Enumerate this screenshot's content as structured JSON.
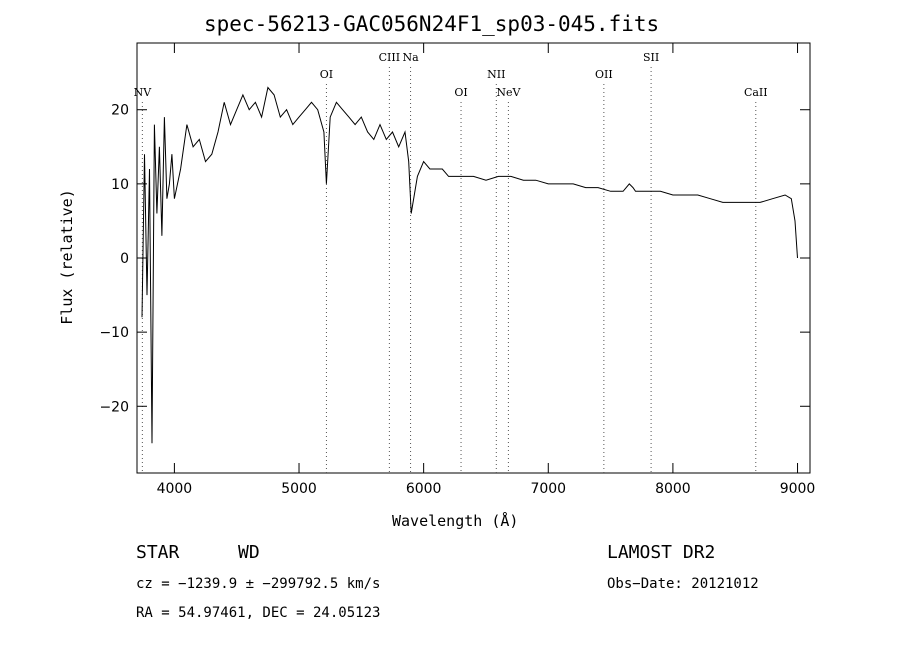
{
  "chart_data": {
    "type": "line",
    "title": "spec-56213-GAC056N24F1_sp03-045.fits",
    "xlabel": "Wavelength (Å)",
    "ylabel": "Flux (relative)",
    "xlim": [
      3700,
      9100
    ],
    "ylim": [
      -29,
      29
    ],
    "x_ticks": [
      4000,
      5000,
      6000,
      7000,
      8000,
      9000
    ],
    "y_ticks": [
      -20,
      -10,
      0,
      10,
      20
    ],
    "y_tick_labels": [
      "−20",
      "−10",
      "0",
      "10",
      "20"
    ],
    "grid": false,
    "series": [
      {
        "x": [
          3740,
          3760,
          3780,
          3800,
          3820,
          3840,
          3860,
          3880,
          3900,
          3920,
          3940,
          3960,
          3980,
          4000,
          4050,
          4100,
          4150,
          4200,
          4250,
          4300,
          4350,
          4400,
          4450,
          4500,
          4550,
          4600,
          4650,
          4700,
          4750,
          4800,
          4850,
          4900,
          4950,
          5000,
          5050,
          5100,
          5150,
          5200,
          5220,
          5250,
          5300,
          5350,
          5400,
          5450,
          5500,
          5550,
          5600,
          5650,
          5700,
          5750,
          5800,
          5850,
          5880,
          5900,
          5950,
          6000,
          6050,
          6100,
          6150,
          6200,
          6300,
          6400,
          6500,
          6600,
          6700,
          6800,
          6900,
          7000,
          7100,
          7200,
          7300,
          7400,
          7500,
          7600,
          7650,
          7680,
          7700,
          7800,
          7900,
          8000,
          8100,
          8200,
          8300,
          8400,
          8500,
          8600,
          8700,
          8800,
          8900,
          8950,
          8980,
          9000
        ],
        "y": [
          -8,
          14,
          -5,
          12,
          -25,
          18,
          6,
          15,
          3,
          19,
          8,
          10,
          14,
          8,
          12,
          18,
          15,
          16,
          13,
          14,
          17,
          21,
          18,
          20,
          22,
          20,
          21,
          19,
          23,
          22,
          19,
          20,
          18,
          19,
          20,
          21,
          20,
          17,
          10,
          19,
          21,
          20,
          19,
          18,
          19,
          17,
          16,
          18,
          16,
          17,
          15,
          17,
          13,
          6,
          11,
          13,
          12,
          12,
          12,
          11,
          11,
          11,
          10.5,
          11,
          11,
          10.5,
          10.5,
          10,
          10,
          10,
          9.5,
          9.5,
          9,
          9,
          10,
          9.5,
          9,
          9,
          9,
          8.5,
          8.5,
          8.5,
          8,
          7.5,
          7.5,
          7.5,
          7.5,
          8,
          8.5,
          8,
          5,
          0
        ]
      }
    ],
    "line_markers": [
      {
        "label": "NV",
        "x": 3743,
        "row": 3
      },
      {
        "label": "OI",
        "x": 5220,
        "row": 2
      },
      {
        "label": "CIII",
        "x": 5725,
        "row": 1
      },
      {
        "label": "Na",
        "x": 5895,
        "row": 1
      },
      {
        "label": "OI",
        "x": 6300,
        "row": 3
      },
      {
        "label": "NII",
        "x": 6583,
        "row": 2
      },
      {
        "label": "NeV",
        "x": 6680,
        "row": 3
      },
      {
        "label": "OII",
        "x": 7446,
        "row": 2
      },
      {
        "label": "SII",
        "x": 7825,
        "row": 1
      },
      {
        "label": "CaII",
        "x": 8665,
        "row": 3
      }
    ]
  },
  "info": {
    "object_class": "STAR",
    "subclass": "WD",
    "survey": "LAMOST DR2",
    "cz": "cz = −1239.9 ± −299792.5 km/s",
    "obs_date": "Obs−Date: 20121012",
    "coords": "RA =  54.97461, DEC =  24.05123"
  }
}
